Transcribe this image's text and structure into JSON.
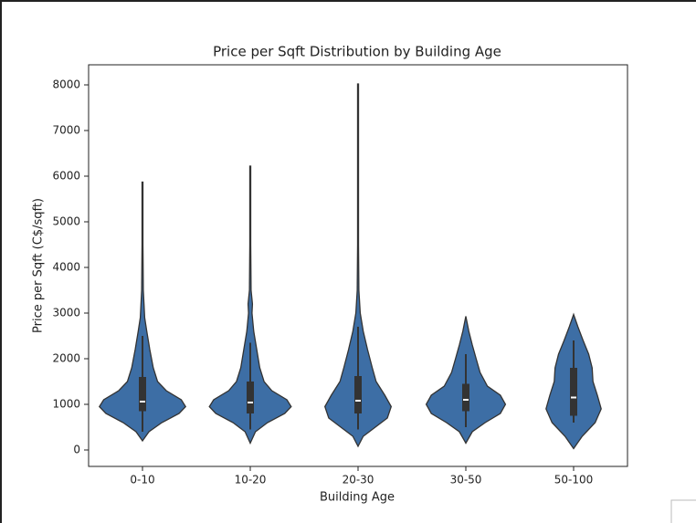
{
  "chart_data": {
    "type": "violin",
    "title": "Price per Sqft Distribution by Building Age",
    "x_label": "Building Age",
    "y_label": "Price per Sqft (C$/sqft)",
    "categories": [
      "0-10",
      "10-20",
      "20-30",
      "30-50",
      "50-100"
    ],
    "color": "#3d6ea5",
    "ylim": [
      -360,
      8440
    ],
    "yticks": [
      0,
      1000,
      2000,
      3000,
      4000,
      5000,
      6000,
      7000,
      8000
    ],
    "violins": [
      {
        "y": [
          200,
          400,
          600,
          800,
          950,
          1100,
          1300,
          1500,
          1800,
          2200,
          2600,
          2900,
          3500,
          4500,
          5870
        ],
        "density": [
          0,
          0.15,
          0.45,
          0.85,
          1.0,
          0.9,
          0.55,
          0.35,
          0.25,
          0.17,
          0.1,
          0.05,
          0.02,
          0.01,
          0.01
        ],
        "q1": 850,
        "median": 1060,
        "q3": 1600,
        "whisker_low": 400,
        "whisker_high": 2500
      },
      {
        "y": [
          150,
          400,
          600,
          800,
          950,
          1100,
          1300,
          1500,
          1800,
          2200,
          2600,
          3000,
          3200,
          3500,
          4500,
          6220
        ],
        "density": [
          0,
          0.12,
          0.4,
          0.8,
          0.95,
          0.85,
          0.5,
          0.32,
          0.22,
          0.15,
          0.08,
          0.04,
          0.05,
          0.02,
          0.01,
          0.01
        ],
        "q1": 800,
        "median": 1040,
        "q3": 1500,
        "whisker_low": 450,
        "whisker_high": 2350
      },
      {
        "y": [
          80,
          300,
          500,
          700,
          950,
          1200,
          1500,
          1800,
          2200,
          2600,
          3000,
          3500,
          4500,
          6000,
          8020
        ],
        "density": [
          0,
          0.12,
          0.4,
          0.68,
          0.77,
          0.62,
          0.42,
          0.33,
          0.22,
          0.12,
          0.05,
          0.02,
          0.01,
          0.01,
          0.01
        ],
        "q1": 800,
        "median": 1080,
        "q3": 1620,
        "whisker_low": 450,
        "whisker_high": 2700
      },
      {
        "y": [
          150,
          400,
          600,
          800,
          1000,
          1200,
          1400,
          1700,
          2000,
          2300,
          2600,
          2930
        ],
        "density": [
          0,
          0.15,
          0.45,
          0.8,
          0.92,
          0.8,
          0.5,
          0.33,
          0.24,
          0.15,
          0.07,
          0
        ],
        "q1": 850,
        "median": 1100,
        "q3": 1450,
        "whisker_low": 500,
        "whisker_high": 2100
      },
      {
        "y": [
          30,
          300,
          600,
          900,
          1200,
          1500,
          1800,
          2100,
          2400,
          2700,
          2970
        ],
        "density": [
          0,
          0.2,
          0.5,
          0.64,
          0.55,
          0.45,
          0.43,
          0.35,
          0.22,
          0.1,
          0
        ],
        "q1": 750,
        "median": 1150,
        "q3": 1800,
        "whisker_low": 600,
        "whisker_high": 2400
      }
    ]
  }
}
